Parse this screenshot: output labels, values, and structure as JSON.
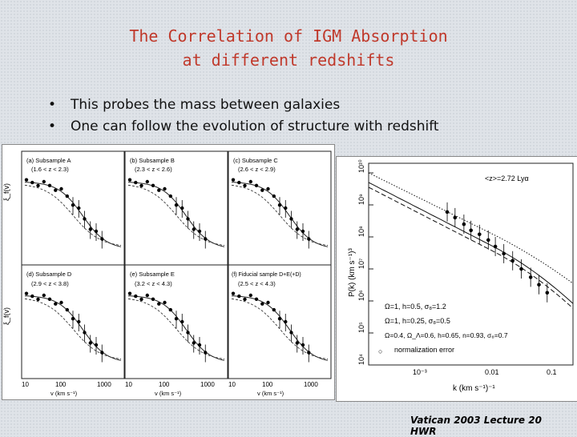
{
  "slide": {
    "title_line1": "The Correlation of IGM Absorption",
    "title_line2": "at different redshifts",
    "bullets": [
      "This probes the mass between galaxies",
      "One can follow the evolution of structure with redshift"
    ],
    "footer": "Vatican 2003 Lecture 20 HWR"
  },
  "left_figure": {
    "panels": [
      {
        "label": "(a) Subsample A",
        "range": "(1.6 < z < 2.3)"
      },
      {
        "label": "(b) Subsample B",
        "range": "(2.3 < z < 2.6)"
      },
      {
        "label": "(c) Subsample C",
        "range": "(2.6 < z < 2.9)"
      },
      {
        "label": "(d) Subsample D",
        "range": "(2.9 < z < 3.8)"
      },
      {
        "label": "(e) Subsample E",
        "range": "(3.2 < z < 4.3)"
      },
      {
        "label": "(f) Fiducial sample D+E(+D)",
        "range": "(2.5 < z < 4.3)"
      }
    ],
    "y_top_label": "ξ_f(v)",
    "y_bottom_label": "ξ_f(v)",
    "x_label": "v (km s⁻¹)",
    "x_ticks": [
      "10",
      "100",
      "1000"
    ]
  },
  "right_figure": {
    "annotation": "<z>=2.72 Lyα",
    "ylabel": "P(k) (km s⁻¹)³",
    "xlabel": "k (km s⁻¹)⁻¹",
    "x_ticks": [
      "10⁻³",
      "0.01",
      "0.1"
    ],
    "y_ticks": [
      "10⁴",
      "10⁵",
      "10⁶",
      "10⁷",
      "10⁸",
      "10⁹",
      "10¹⁰"
    ],
    "legend": [
      "Ω=1, h=0.5, σ₈=1.2",
      "Ω=1, h=0.25, σ₈=0.5",
      "Ω=0.4, Ω_Λ=0.6, h=0.65, n=0.93, σ₈=0.7",
      "normalization error"
    ]
  },
  "chart_data": {
    "type": "scatter",
    "title": "",
    "xlabel": "k (km s⁻¹)⁻¹",
    "ylabel": "P(k) (km s⁻¹)³",
    "xscale": "log",
    "yscale": "log",
    "series": [
      {
        "name": "<z>=2.72 Lyα",
        "x": [
          0.0028,
          0.0035,
          0.0045,
          0.0055,
          0.007,
          0.009,
          0.011,
          0.014,
          0.018,
          0.023,
          0.03,
          0.038,
          0.048
        ],
        "y": [
          600000000.0,
          400000000.0,
          250000000.0,
          160000000.0,
          120000000.0,
          80000000.0,
          50000000.0,
          30000000.0,
          18000000.0,
          10000000.0,
          5500000.0,
          3200000.0,
          1800000.0
        ]
      }
    ],
    "grid": false,
    "legend_position": "bottom-left"
  },
  "colors": {
    "title": "#c0392b",
    "background": "#dfe3e8"
  }
}
